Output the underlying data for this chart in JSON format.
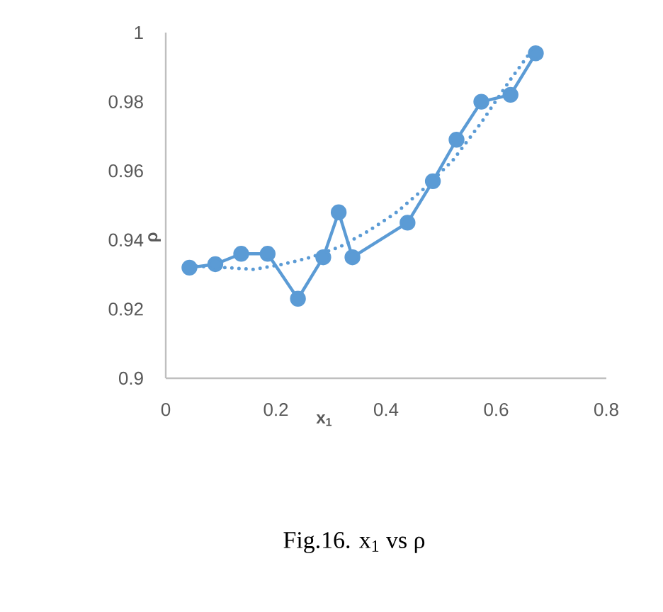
{
  "chart_data": {
    "type": "line",
    "xlabel": "x$_{1}$",
    "ylabel": "ρ",
    "xlim": [
      0,
      0.8
    ],
    "ylim": [
      0.9,
      1
    ],
    "xticks": [
      0,
      0.2,
      0.4,
      0.6,
      0.8
    ],
    "yticks": [
      0.9,
      0.92,
      0.94,
      0.96,
      0.98,
      1
    ],
    "grid": false,
    "series": [
      {
        "color": "#5b9bd5",
        "marker": "circle",
        "line_style": "solid",
        "x": [
          0.043,
          0.09,
          0.137,
          0.185,
          0.24,
          0.286,
          0.314,
          0.339,
          0.439,
          0.485,
          0.528,
          0.573,
          0.626,
          0.672
        ],
        "values": [
          0.932,
          0.933,
          0.936,
          0.936,
          0.923,
          0.935,
          0.948,
          0.935,
          0.945,
          0.957,
          0.969,
          0.98,
          0.982,
          0.994
        ]
      },
      {
        "color": "#5b9bd5",
        "marker": "none",
        "line_style": "dotted",
        "x": [
          0.043,
          0.11,
          0.161,
          0.213,
          0.264,
          0.316,
          0.367,
          0.419,
          0.47,
          0.521,
          0.573,
          0.624,
          0.663
        ],
        "values": [
          0.9325,
          0.932,
          0.9315,
          0.933,
          0.935,
          0.938,
          0.9425,
          0.948,
          0.955,
          0.963,
          0.974,
          0.986,
          0.9945
        ]
      }
    ],
    "annotations": [
      "Fig.16. x$_{1}$ vs ρ"
    ]
  }
}
